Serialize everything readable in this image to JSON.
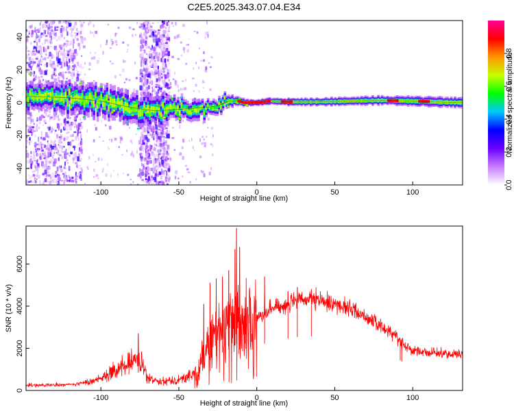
{
  "figure": {
    "title": "C2E5.2025.343.07.04.E34"
  },
  "chart_data": [
    {
      "type": "heatmap",
      "name": "spectrogram",
      "title": "C2E5.2025.343.07.04.E34",
      "xlabel": "Height of straight line (km)",
      "ylabel": "Frequency (Hz)",
      "xlim": [
        -148,
        132
      ],
      "ylim": [
        -50,
        50
      ],
      "x_ticks": [
        -100,
        -50,
        0,
        50,
        100
      ],
      "x_tick_labels": [
        "-100",
        "-50",
        "0",
        "50",
        "100"
      ],
      "y_ticks": [
        -40,
        -20,
        0,
        20,
        40
      ],
      "y_tick_labels": [
        "-40",
        "-20",
        "0",
        "20",
        "40"
      ],
      "centerline_hz": [
        [
          -148,
          4
        ],
        [
          -120,
          3
        ],
        [
          -100,
          1
        ],
        [
          -80,
          -3
        ],
        [
          -65,
          -5
        ],
        [
          -50,
          -4
        ],
        [
          -35,
          -3
        ],
        [
          -25,
          -2
        ],
        [
          -18,
          1
        ],
        [
          -12,
          1
        ],
        [
          -8,
          0
        ],
        [
          0,
          0
        ],
        [
          8,
          1
        ],
        [
          20,
          0.5
        ],
        [
          40,
          0.5
        ],
        [
          60,
          1
        ],
        [
          80,
          1.5
        ],
        [
          100,
          1
        ],
        [
          132,
          0
        ]
      ],
      "band_halfwidth_hz": [
        [
          -148,
          8
        ],
        [
          -100,
          10
        ],
        [
          -70,
          9
        ],
        [
          -40,
          6
        ],
        [
          -20,
          4
        ],
        [
          -10,
          2.5
        ],
        [
          0,
          2
        ],
        [
          50,
          2.5
        ],
        [
          100,
          3
        ],
        [
          132,
          3
        ]
      ],
      "noise_regions_km": [
        [
          -148,
          -112
        ],
        [
          -75,
          -56
        ]
      ],
      "hot_segments_km": [
        [
          -12,
          8
        ],
        [
          16,
          22
        ],
        [
          84,
          90
        ],
        [
          104,
          110
        ]
      ],
      "colorbar": {
        "label": "Normalized spectral amplitude",
        "ticks": [
          0.0,
          0.2,
          0.4,
          0.6,
          0.8
        ],
        "tick_labels": [
          "0.0",
          "0.2",
          "0.4",
          "0.6",
          "0.8"
        ],
        "colors": [
          "#ffffff",
          "#c77dff",
          "#6a00ff",
          "#0000ff",
          "#00c8ff",
          "#00ff00",
          "#c8ff00",
          "#ff9600",
          "#ff0000",
          "#ff0096"
        ]
      }
    },
    {
      "type": "line",
      "name": "snr",
      "xlabel": "Height of straight line (km)",
      "ylabel": "SNR (10 * v/v)",
      "xlim": [
        -148,
        132
      ],
      "ylim": [
        0,
        7800
      ],
      "x_ticks": [
        -100,
        -50,
        0,
        50,
        100
      ],
      "x_tick_labels": [
        "-100",
        "-50",
        "0",
        "50",
        "100"
      ],
      "y_ticks": [
        0,
        2000,
        4000,
        6000
      ],
      "y_tick_labels": [
        "0",
        "2000",
        "4000",
        "6000"
      ],
      "color": "#ff0000",
      "envelope": [
        [
          -148,
          250
        ],
        [
          -130,
          250
        ],
        [
          -115,
          300
        ],
        [
          -105,
          450
        ],
        [
          -95,
          800
        ],
        [
          -85,
          1100
        ],
        [
          -78,
          1500
        ],
        [
          -74,
          1300
        ],
        [
          -70,
          550
        ],
        [
          -60,
          450
        ],
        [
          -50,
          500
        ],
        [
          -42,
          700
        ],
        [
          -36,
          1200
        ],
        [
          -32,
          2200
        ],
        [
          -28,
          2600
        ],
        [
          -24,
          2800
        ],
        [
          -20,
          3200
        ],
        [
          -16,
          3300
        ],
        [
          -13,
          3700
        ],
        [
          -10,
          3000
        ],
        [
          -6,
          3400
        ],
        [
          0,
          3500
        ],
        [
          10,
          3900
        ],
        [
          20,
          4100
        ],
        [
          30,
          4300
        ],
        [
          40,
          4250
        ],
        [
          50,
          4100
        ],
        [
          60,
          3900
        ],
        [
          70,
          3500
        ],
        [
          80,
          3000
        ],
        [
          88,
          2700
        ],
        [
          93,
          2300
        ],
        [
          96,
          2100
        ],
        [
          100,
          1900
        ],
        [
          110,
          1800
        ],
        [
          120,
          1750
        ],
        [
          132,
          1700
        ]
      ],
      "spikes": [
        [
          -82,
          1800
        ],
        [
          -76,
          2700
        ],
        [
          -34,
          4100
        ],
        [
          -30,
          5100
        ],
        [
          -26,
          5300
        ],
        [
          -22,
          5400
        ],
        [
          -18,
          5700
        ],
        [
          -14,
          6700
        ],
        [
          -13,
          7700
        ],
        [
          -11,
          6800
        ],
        [
          -9,
          3900
        ],
        [
          -7,
          3100
        ],
        [
          -4,
          4400
        ],
        [
          5,
          5400
        ],
        [
          20,
          4700
        ],
        [
          26,
          4900
        ],
        [
          35,
          4800
        ],
        [
          92,
          2200
        ],
        [
          93,
          1700
        ]
      ]
    }
  ]
}
